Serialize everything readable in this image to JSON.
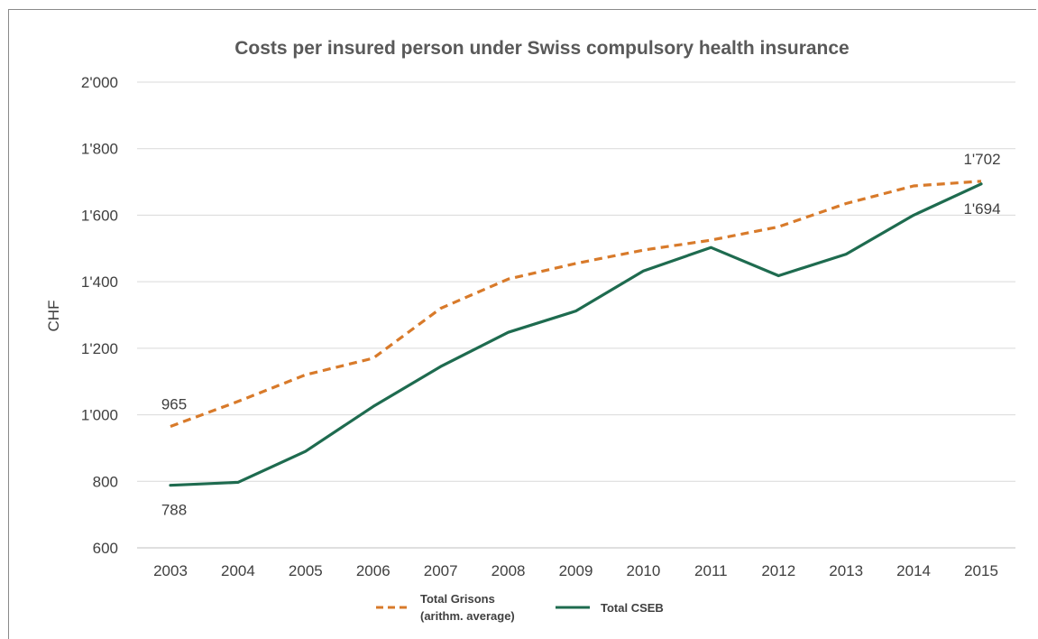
{
  "chart_data": {
    "type": "line",
    "title": "Costs per insured person under Swiss compulsory health insurance",
    "ylabel": "CHF",
    "xlabel": "",
    "categories": [
      "2003",
      "2004",
      "2005",
      "2006",
      "2007",
      "2008",
      "2009",
      "2010",
      "2011",
      "2012",
      "2013",
      "2014",
      "2015"
    ],
    "ylim": [
      600,
      2000
    ],
    "yticks": [
      600,
      800,
      1000,
      1200,
      1400,
      1600,
      1800,
      2000
    ],
    "ytick_labels": [
      "600",
      "800",
      "1'000",
      "1'200",
      "1'400",
      "1'600",
      "1'800",
      "2'000"
    ],
    "grid": true,
    "legend_position": "bottom",
    "series": [
      {
        "name_lines": [
          "Total Grisons",
          "(arithm. average)"
        ],
        "color": "#d87a2a",
        "style": "dashed",
        "values": [
          965,
          1040,
          1120,
          1170,
          1320,
          1408,
          1455,
          1495,
          1525,
          1565,
          1635,
          1688,
          1702
        ]
      },
      {
        "name_lines": [
          "Total CSEB"
        ],
        "color": "#1e6b4f",
        "style": "solid",
        "values": [
          788,
          797,
          890,
          1025,
          1145,
          1248,
          1312,
          1432,
          1503,
          1418,
          1483,
          1600,
          1694
        ]
      }
    ],
    "annotations": [
      {
        "text": "965",
        "series": 0,
        "index": 0,
        "position": "above"
      },
      {
        "text": "788",
        "series": 1,
        "index": 0,
        "position": "below"
      },
      {
        "text": "1'702",
        "series": 0,
        "index": 12,
        "position": "above"
      },
      {
        "text": "1'694",
        "series": 1,
        "index": 12,
        "position": "below"
      }
    ]
  }
}
